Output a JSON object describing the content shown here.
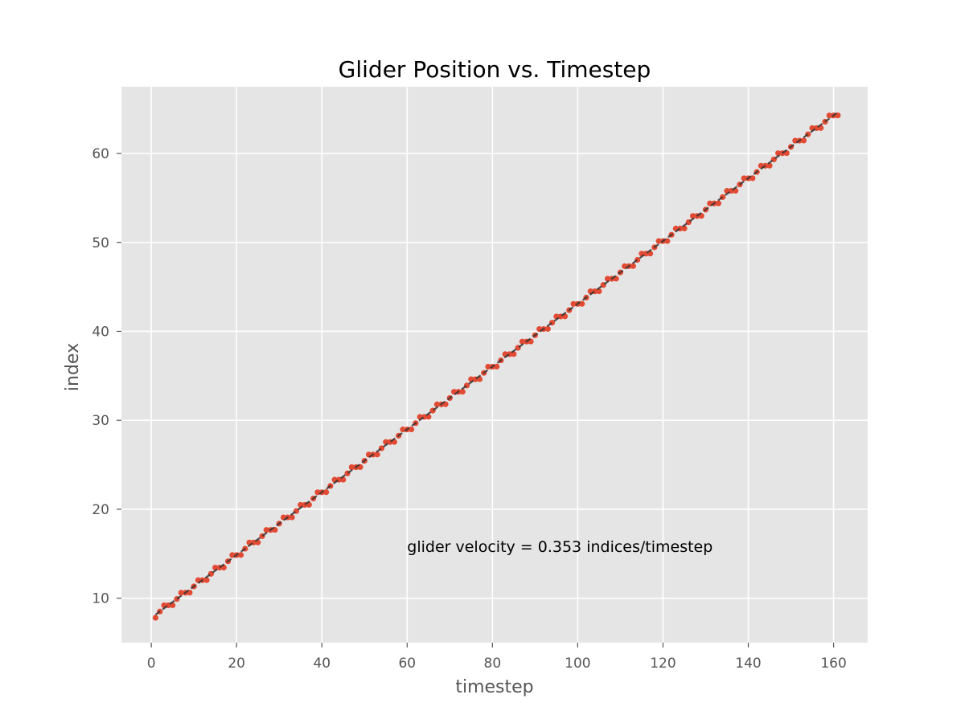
{
  "chart_data": {
    "type": "scatter",
    "title": "Glider Position vs. Timestep",
    "xlabel": "timestep",
    "ylabel": "index",
    "xlim": [
      -7,
      168
    ],
    "ylim": [
      5,
      67.5
    ],
    "xticks": [
      "0",
      "20",
      "40",
      "60",
      "80",
      "100",
      "120",
      "140",
      "160"
    ],
    "yticks": [
      "10",
      "20",
      "30",
      "40",
      "50",
      "60"
    ],
    "grid": true,
    "annotation": {
      "text": "glider velocity = 0.353 indices/timestep",
      "x": 60,
      "y": 15.2
    },
    "points": {
      "x_start": 1,
      "x_end": 161,
      "x_step": 1,
      "y_first": 7.8,
      "y_period": 4,
      "y_step_per_period": 1.412,
      "y_pattern_offsets": [
        0,
        0.7,
        1.4,
        1.4
      ]
    },
    "fit_line": {
      "slope": 0.353,
      "intercept": 7.8,
      "x_range": [
        1,
        161
      ],
      "style": "dashed"
    },
    "colors": {
      "points": "#E24A33",
      "fit_line": "#333333",
      "plot_background": "#E5E5E5",
      "grid": "#FFFFFF"
    }
  }
}
